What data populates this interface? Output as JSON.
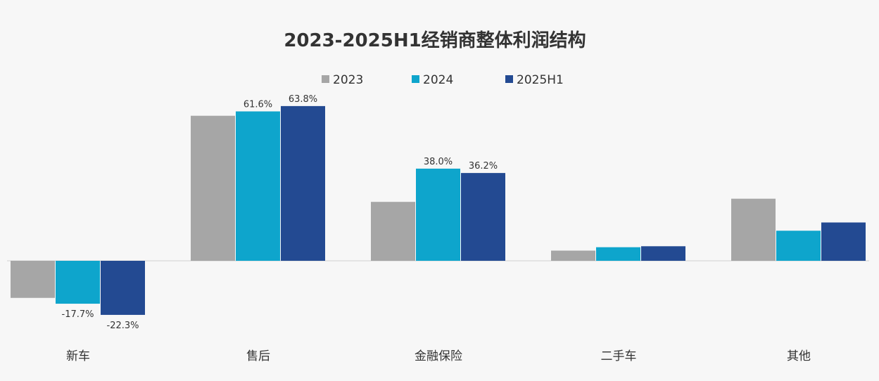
{
  "chart_data": {
    "type": "bar",
    "title": "2023-2025H1经销商整体利润结构",
    "categories": [
      "新车",
      "售后",
      "金融保险",
      "二手车",
      "其他"
    ],
    "series": [
      {
        "name": "2023",
        "color": "#a6a6a6",
        "values": [
          -15.3,
          59.8,
          24.3,
          4.2,
          25.6
        ]
      },
      {
        "name": "2024",
        "color": "#0ea5cc",
        "values": [
          -17.7,
          61.6,
          38.0,
          5.6,
          12.4
        ]
      },
      {
        "name": "2025H1",
        "color": "#234a92",
        "values": [
          -22.3,
          63.8,
          36.2,
          6.0,
          15.8
        ]
      }
    ],
    "data_labels": [
      {
        "series": 1,
        "category": 0,
        "text": "-17.7%"
      },
      {
        "series": 2,
        "category": 0,
        "text": "-22.3%"
      },
      {
        "series": 1,
        "category": 1,
        "text": "61.6%"
      },
      {
        "series": 2,
        "category": 1,
        "text": "63.8%"
      },
      {
        "series": 1,
        "category": 2,
        "text": "38.0%"
      },
      {
        "series": 2,
        "category": 2,
        "text": "36.2%"
      }
    ],
    "legend_position": "top-center",
    "grid": false,
    "ylim": [
      -30,
      70
    ]
  }
}
